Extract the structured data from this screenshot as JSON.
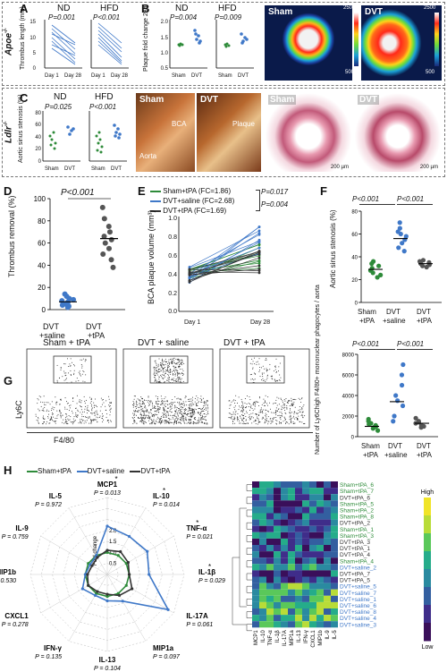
{
  "apoe": {
    "genotype": "Apoe",
    "sup": "-/-"
  },
  "ldlr": {
    "genotype": "Ldlr",
    "sup": "-/-"
  },
  "panels": {
    "A": "A",
    "B": "B",
    "C": "C",
    "D": "D",
    "E": "E",
    "F": "F",
    "G": "G",
    "H": "H"
  },
  "A": {
    "ylabel": "Thrombus length (mm)",
    "nd": "ND",
    "hfd": "HFD",
    "p1": "P=0.001",
    "p2": "P<0.001",
    "ticks": [
      "0",
      "5",
      "10",
      "15"
    ],
    "xticks": [
      "Day 1",
      "Day 28",
      "Day 1",
      "Day 28"
    ]
  },
  "B": {
    "ylabel": "Plaque fold change 28d",
    "nd": "ND",
    "hfd": "HFD",
    "p1": "P=0.004",
    "p2": "P=0.009",
    "ticks": [
      "0.5",
      "1.0",
      "1.5",
      "2.0"
    ],
    "xticks": [
      "Sham",
      "DVT",
      "Sham",
      "DVT"
    ],
    "img_sham": "Sham",
    "img_dvt": "DVT",
    "scale_hi": "2500",
    "scale_lo": "500"
  },
  "C": {
    "ylabel": "Aortic sinus stenosis (%)",
    "nd": "ND",
    "hfd": "HFD",
    "p1": "P=0.025",
    "p2": "P<0.001",
    "ticks": [
      "0",
      "20",
      "40",
      "60",
      "80"
    ],
    "xticks": [
      "Sham",
      "DVT",
      "Sham",
      "DVT"
    ],
    "img1": "Sham",
    "img2": "DVT",
    "img3": "Sham",
    "img4": "DVT",
    "bca": "BCA",
    "aorta": "Aorta",
    "plaque": "Plaque",
    "scale1": "200 µm",
    "scale2": "200 µm"
  },
  "D": {
    "ylabel": "Thrombus removal (%)",
    "p": "P<0.001",
    "ticks": [
      "0",
      "20",
      "40",
      "60",
      "80",
      "100"
    ],
    "x1a": "DVT",
    "x1b": "+saline",
    "x2a": "DVT",
    "x2b": "+tPA",
    "chart_data": {
      "type": "scatter",
      "categories": [
        "DVT+saline",
        "DVT+tPA"
      ],
      "series": [
        {
          "values": [
            2,
            3,
            4,
            5,
            6,
            7,
            8,
            9,
            10,
            12,
            14
          ]
        },
        {
          "values": [
            38,
            45,
            50,
            55,
            60,
            63,
            66,
            70,
            75,
            82,
            92
          ]
        }
      ],
      "means": [
        7,
        64
      ],
      "ylim": [
        0,
        100
      ]
    }
  },
  "E": {
    "ylabel": "BCA plaque volume (mm³)",
    "leg1": "Sham+tPA (FC=1.86)",
    "leg2": "DVT+saline (FC=2.68)",
    "leg3": "DVT+tPA (FC=1.69)",
    "p1": "P=0.017",
    "p2": "P=0.004",
    "ticks": [
      "0.0",
      "0.2",
      "0.4",
      "0.6",
      "0.8",
      "1.0"
    ],
    "xticks": [
      "Day 1",
      "Day 28"
    ],
    "green": "#2e8b3a",
    "blue": "#3f78c8",
    "black": "#333333"
  },
  "F": {
    "ylabel": "Aortic sinus stenosis (%)",
    "p1": "P<0.001",
    "p2": "P<0.001",
    "ticks": [
      "0",
      "20",
      "40",
      "60",
      "80"
    ],
    "xa": [
      "Sham",
      "DVT",
      "DVT"
    ],
    "xb": [
      "+tPA",
      "+saline",
      "+tPA"
    ],
    "chart_data": {
      "type": "scatter",
      "categories": [
        "Sham+tPA",
        "DVT+saline",
        "DVT+tPA"
      ],
      "series": [
        {
          "values": [
            22,
            24,
            26,
            28,
            30,
            32,
            34,
            36
          ]
        },
        {
          "values": [
            45,
            48,
            52,
            55,
            58,
            60,
            62,
            65,
            70
          ]
        },
        {
          "values": [
            31,
            32,
            33,
            34,
            35,
            36,
            37
          ]
        }
      ],
      "means": [
        29,
        56,
        34
      ],
      "ylim": [
        0,
        80
      ]
    }
  },
  "G": {
    "t1": "Sham + tPA",
    "t2": "DVT + saline",
    "t3": "DVT + tPA",
    "ylab": "Ly6C",
    "xlab": "F4/80",
    "ylabel": "Number of Ly6Chigh F4/80+ mononuclear phagocytes / aorta",
    "p1": "P<0.001",
    "p2": "P<0.001",
    "ticks": [
      "0",
      "2000",
      "4000",
      "6000",
      "8000"
    ],
    "xa": [
      "Sham",
      "DVT",
      "DVT"
    ],
    "xb": [
      "+tPA",
      "+saline",
      "+tPA"
    ],
    "chart_data": {
      "type": "scatter",
      "categories": [
        "Sham+tPA",
        "DVT+saline",
        "DVT+tPA"
      ],
      "series": [
        {
          "values": [
            600,
            800,
            900,
            1000,
            1100,
            1200,
            1300,
            1500,
            1700
          ]
        },
        {
          "values": [
            1500,
            2000,
            3000,
            3500,
            4000,
            5000,
            6000,
            7000
          ]
        },
        {
          "values": [
            900,
            1000,
            1100,
            1300,
            1400,
            1500,
            1800
          ]
        }
      ],
      "means": [
        1000,
        3400,
        1300
      ],
      "ylim": [
        0,
        8000
      ]
    }
  },
  "H": {
    "leg1": "Sham+tPA",
    "leg2": "DVT+saline",
    "leg3": "DVT+tPA",
    "foldchange": "Fold change",
    "axes": [
      {
        "name": "MCP1",
        "p": "P = 0.013",
        "star": "*"
      },
      {
        "name": "IL-10",
        "p": "P = 0.014",
        "star": "*"
      },
      {
        "name": "TNF-α",
        "p": "P = 0.021",
        "star": "*"
      },
      {
        "name": "IL-1β",
        "p": "P = 0.029",
        "star": "*"
      },
      {
        "name": "IL-17A",
        "p": "P = 0.061",
        "star": ""
      },
      {
        "name": "MIP1a",
        "p": "P = 0.097",
        "star": ""
      },
      {
        "name": "IL-13",
        "p": "P = 0.104",
        "star": ""
      },
      {
        "name": "IFN-γ",
        "p": "P = 0.135",
        "star": ""
      },
      {
        "name": "CXCL1",
        "p": "P = 0.278",
        "star": ""
      },
      {
        "name": "MIP1b",
        "p": "P = 0.530",
        "star": ""
      },
      {
        "name": "IL-9",
        "p": "P = 0.759",
        "star": ""
      },
      {
        "name": "IL-5",
        "p": "P = 0.972",
        "star": ""
      }
    ],
    "rticks": [
      "0.5",
      "1.0",
      "1.5",
      "2.0"
    ],
    "chart_data": {
      "type": "radar",
      "axes": [
        "MCP1",
        "IL-10",
        "TNF-α",
        "IL-1β",
        "IL-17A",
        "MIP1a",
        "IL-13",
        "IFN-γ",
        "CXCL1",
        "MIP1b",
        "IL-9",
        "IL-5"
      ],
      "series": [
        {
          "name": "Sham+tPA",
          "values": [
            1,
            1,
            1,
            1,
            1,
            1,
            1,
            1,
            1,
            1,
            1,
            1
          ]
        },
        {
          "name": "DVT+saline",
          "values": [
            2.2,
            2.0,
            2.1,
            1.9,
            3.2,
            1.4,
            1.2,
            1.1,
            1.3,
            1.0,
            0.9,
            1.0
          ]
        },
        {
          "name": "DVT+tPA",
          "values": [
            1.1,
            1.2,
            1.1,
            1.0,
            1.3,
            1.1,
            0.9,
            0.9,
            1.0,
            0.9,
            0.8,
            0.9
          ]
        }
      ]
    },
    "heat_cols": [
      "MCP1",
      "IL-10",
      "TNF-α",
      "IL-1β",
      "IL-17A",
      "MIP1a",
      "IL-13",
      "IFN-γ",
      "CXCL1",
      "MIP1b",
      "IL-9",
      "IL-5"
    ],
    "heat_rows": [
      "Sham+tPA_6",
      "Sham+tPA_7",
      "DVT+tPA_6",
      "Sham+tPA_5",
      "Sham+tPA_2",
      "Sham+tPA_8",
      "DVT+tPA_2",
      "Sham+tPA_1",
      "Sham+tPA_3",
      "DVT+tPA_3",
      "DVT+tPA_1",
      "DVT+tPA_4",
      "Sham+tPA_4",
      "DVT+saline_2",
      "DVT+tPA_7",
      "DVT+tPA_5",
      "DVT+saline_5",
      "DVT+saline_7",
      "DVT+saline_1",
      "DVT+saline_6",
      "DVT+saline_8",
      "DVT+saline_4",
      "DVT+saline_3"
    ],
    "row_group": [
      "g",
      "g",
      "k",
      "g",
      "g",
      "g",
      "k",
      "g",
      "g",
      "k",
      "k",
      "k",
      "g",
      "b",
      "k",
      "k",
      "b",
      "b",
      "b",
      "b",
      "b",
      "b",
      "b"
    ],
    "high": "High",
    "low": "Low"
  }
}
